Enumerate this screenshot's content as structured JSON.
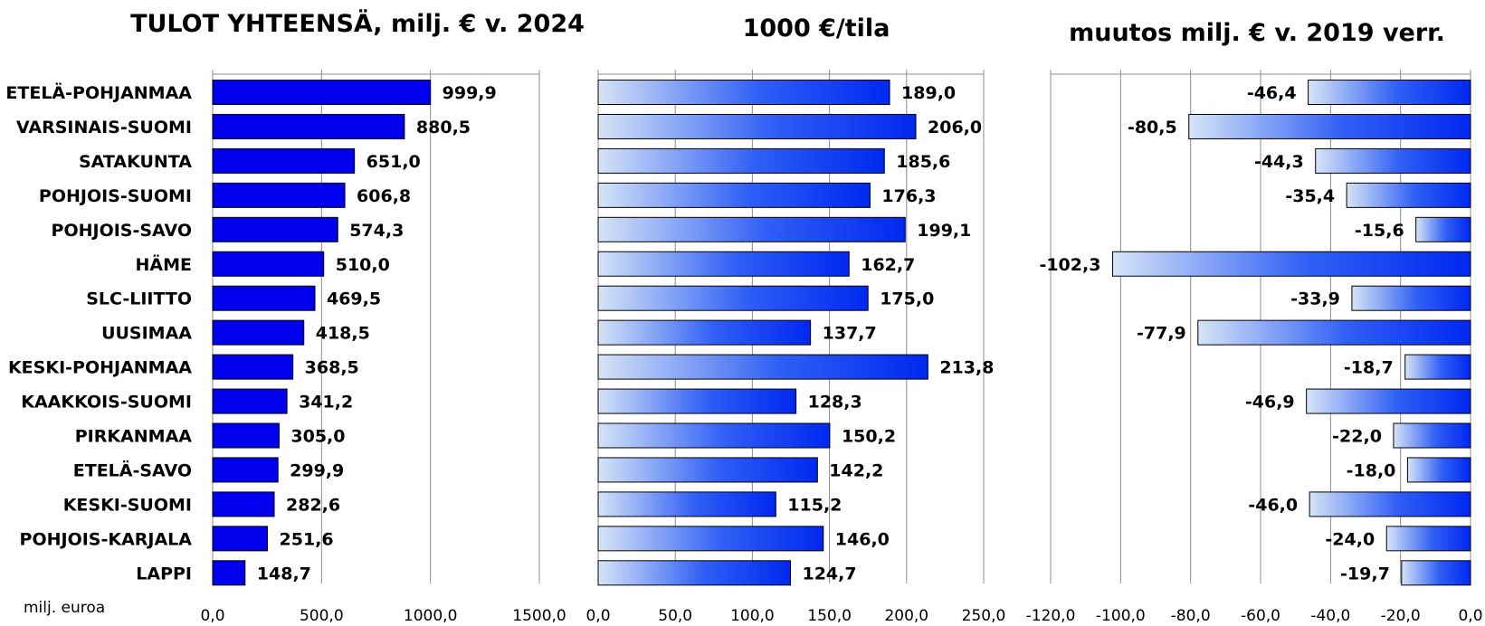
{
  "categories": [
    "ETELÄ-POHJANMAA",
    "VARSINAIS-SUOMI",
    "SATAKUNTA",
    "POHJOIS-SUOMI",
    "POHJOIS-SAVO",
    "HÄME",
    "SLC-LIITTO",
    "UUSIMAA",
    "KESKI-POHJANMAA",
    "KAAKKOIS-SUOMI",
    "PIRKANMAA",
    "ETELÄ-SAVO",
    "KESKI-SUOMI",
    "POHJOIS-KARJALA",
    "LAPPI"
  ],
  "unit_note": "milj. euroa",
  "colors": {
    "solid": "#0000ee",
    "gradient_light": "#d6e4f6",
    "gradient_dark": "#0028f0",
    "grid": "#8c8c8c"
  },
  "chart_data": [
    {
      "type": "bar",
      "orientation": "horizontal",
      "title": "TULOT YHTEENSÄ, milj. € v. 2024",
      "values": [
        999.9,
        880.5,
        651.0,
        606.8,
        574.3,
        510.0,
        469.5,
        418.5,
        368.5,
        341.2,
        305.0,
        299.9,
        282.6,
        251.6,
        148.7
      ],
      "labels": [
        "999,9",
        "880,5",
        "651,0",
        "606,8",
        "574,3",
        "510,0",
        "469,5",
        "418,5",
        "368,5",
        "341,2",
        "305,0",
        "299,9",
        "282,6",
        "251,6",
        "148,7"
      ],
      "xlim": [
        0,
        1500
      ],
      "ticks": [
        0,
        500,
        1000,
        1500
      ],
      "tick_labels": [
        "0,0",
        "500,0",
        "1000,0",
        "1500,0"
      ],
      "fill": "solid",
      "grid": true
    },
    {
      "type": "bar",
      "orientation": "horizontal",
      "title": "1000 €/tila",
      "values": [
        189.0,
        206.0,
        185.6,
        176.3,
        199.1,
        162.7,
        175.0,
        137.7,
        213.8,
        128.3,
        150.2,
        142.2,
        115.2,
        146.0,
        124.7
      ],
      "labels": [
        "189,0",
        "206,0",
        "185,6",
        "176,3",
        "199,1",
        "162,7",
        "175,0",
        "137,7",
        "213,8",
        "128,3",
        "150,2",
        "142,2",
        "115,2",
        "146,0",
        "124,7"
      ],
      "xlim": [
        0,
        250
      ],
      "ticks": [
        0,
        50,
        100,
        150,
        200,
        250
      ],
      "tick_labels": [
        "0,0",
        "50,0",
        "100,0",
        "150,0",
        "200,0",
        "250,0"
      ],
      "fill": "gradient",
      "grid": true
    },
    {
      "type": "bar",
      "orientation": "horizontal",
      "title": "muutos milj. € v. 2019 verr.",
      "values": [
        -46.4,
        -80.5,
        -44.3,
        -35.4,
        -15.6,
        -102.3,
        -33.9,
        -77.9,
        -18.7,
        -46.9,
        -22.0,
        -18.0,
        -46.0,
        -24.0,
        -19.7
      ],
      "labels": [
        "-46,4",
        "-80,5",
        "-44,3",
        "-35,4",
        "-15,6",
        "-102,3",
        "-33,9",
        "-77,9",
        "-18,7",
        "-46,9",
        "-22,0",
        "-18,0",
        "-46,0",
        "-24,0",
        "-19,7"
      ],
      "xlim": [
        -120,
        0
      ],
      "ticks": [
        -120,
        -100,
        -80,
        -60,
        -40,
        -20,
        0
      ],
      "tick_labels": [
        "-120,0",
        "-100,0",
        "-80,0",
        "-60,0",
        "-40,0",
        "-20,0",
        "0,0"
      ],
      "fill": "gradient",
      "grid": true
    }
  ]
}
